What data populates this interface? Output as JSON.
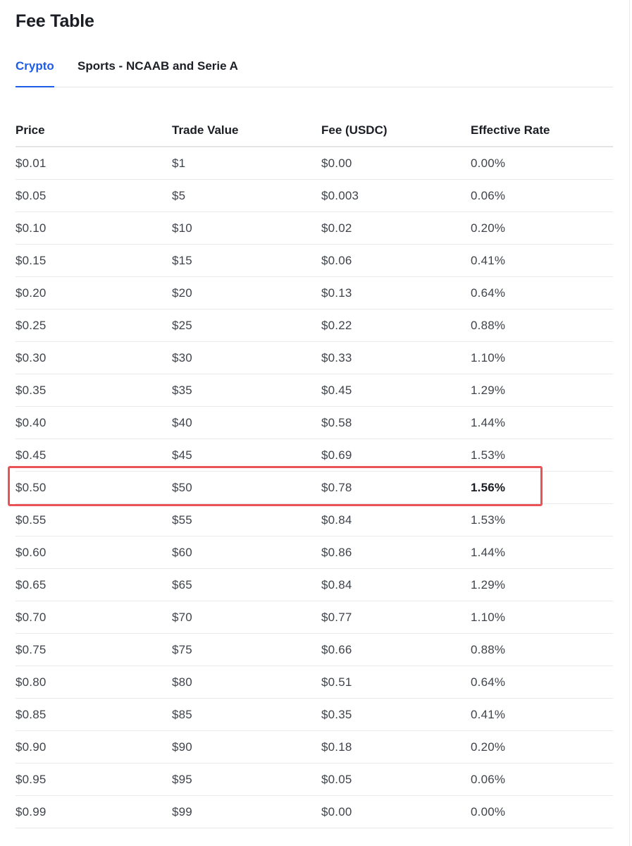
{
  "page": {
    "title": "Fee Table"
  },
  "tabs": [
    {
      "label": "Crypto",
      "active": true
    },
    {
      "label": "Sports - NCAAB and Serie A",
      "active": false
    }
  ],
  "table": {
    "headers": [
      "Price",
      "Trade Value",
      "Fee (USDC)",
      "Effective Rate"
    ],
    "rows": [
      [
        "$0.01",
        "$1",
        "$0.00",
        "0.00%"
      ],
      [
        "$0.05",
        "$5",
        "$0.003",
        "0.06%"
      ],
      [
        "$0.10",
        "$10",
        "$0.02",
        "0.20%"
      ],
      [
        "$0.15",
        "$15",
        "$0.06",
        "0.41%"
      ],
      [
        "$0.20",
        "$20",
        "$0.13",
        "0.64%"
      ],
      [
        "$0.25",
        "$25",
        "$0.22",
        "0.88%"
      ],
      [
        "$0.30",
        "$30",
        "$0.33",
        "1.10%"
      ],
      [
        "$0.35",
        "$35",
        "$0.45",
        "1.29%"
      ],
      [
        "$0.40",
        "$40",
        "$0.58",
        "1.44%"
      ],
      [
        "$0.45",
        "$45",
        "$0.69",
        "1.53%"
      ],
      [
        "$0.50",
        "$50",
        "$0.78",
        "1.56%"
      ],
      [
        "$0.55",
        "$55",
        "$0.84",
        "1.53%"
      ],
      [
        "$0.60",
        "$60",
        "$0.86",
        "1.44%"
      ],
      [
        "$0.65",
        "$65",
        "$0.84",
        "1.29%"
      ],
      [
        "$0.70",
        "$70",
        "$0.77",
        "1.10%"
      ],
      [
        "$0.75",
        "$75",
        "$0.66",
        "0.88%"
      ],
      [
        "$0.80",
        "$80",
        "$0.51",
        "0.64%"
      ],
      [
        "$0.85",
        "$85",
        "$0.35",
        "0.41%"
      ],
      [
        "$0.90",
        "$90",
        "$0.18",
        "0.20%"
      ],
      [
        "$0.95",
        "$95",
        "$0.05",
        "0.06%"
      ],
      [
        "$0.99",
        "$99",
        "$0.00",
        "0.00%"
      ]
    ],
    "highlighted_row": "$0.50"
  },
  "colors": {
    "accent": "#1e5de8",
    "highlight_border": "#ea5255",
    "text": "#1c1f26",
    "muted_text": "#3f434b",
    "divider": "#e8eaed"
  }
}
